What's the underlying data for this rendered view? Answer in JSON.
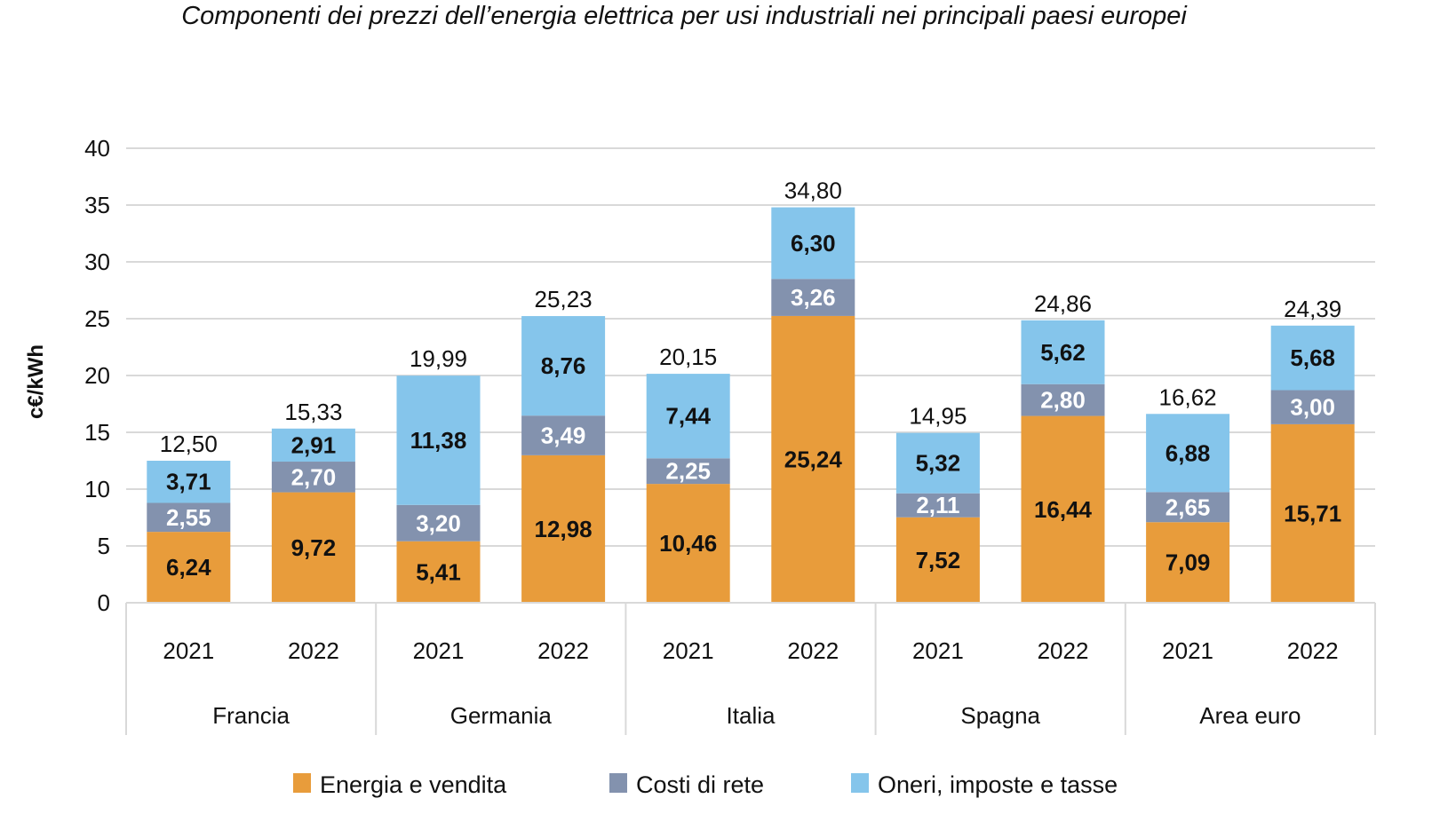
{
  "title": "Componenti dei prezzi dell’energia elettrica per usi industriali nei principali paesi europei",
  "chart_data": {
    "type": "bar",
    "stacked": true,
    "title": "Componenti dei prezzi dell’energia elettrica per usi industriali nei principali paesi europei",
    "xlabel": "",
    "ylabel": "c€/kWh",
    "ylim": [
      0,
      40
    ],
    "yticks": [
      0,
      5,
      10,
      15,
      20,
      25,
      30,
      35,
      40
    ],
    "grid": true,
    "legend_position": "bottom",
    "groups": [
      "Francia",
      "Germania",
      "Italia",
      "Spagna",
      "Area euro"
    ],
    "categories": [
      "2021",
      "2022",
      "2021",
      "2022",
      "2021",
      "2022",
      "2021",
      "2022",
      "2021",
      "2022"
    ],
    "series": [
      {
        "name": "Energia e vendita",
        "color": "#E89C3B",
        "label_color": "#111111",
        "values": [
          6.24,
          9.72,
          5.41,
          12.98,
          10.46,
          25.24,
          7.52,
          16.44,
          7.09,
          15.71
        ],
        "labels": [
          "6,24",
          "9,72",
          "5,41",
          "12,98",
          "10,46",
          "25,24",
          "7,52",
          "16,44",
          "7,09",
          "15,71"
        ]
      },
      {
        "name": "Costi di rete",
        "color": "#8392AE",
        "label_color": "#ffffff",
        "values": [
          2.55,
          2.7,
          3.2,
          3.49,
          2.25,
          3.26,
          2.11,
          2.8,
          2.65,
          3.0
        ],
        "labels": [
          "2,55",
          "2,70",
          "3,20",
          "3,49",
          "2,25",
          "3,26",
          "2,11",
          "2,80",
          "2,65",
          "3,00"
        ]
      },
      {
        "name": "Oneri, imposte e tasse",
        "color": "#85C5EB",
        "label_color": "#111111",
        "values": [
          3.71,
          2.91,
          11.38,
          8.76,
          7.44,
          6.3,
          5.32,
          5.62,
          6.88,
          5.68
        ],
        "labels": [
          "3,71",
          "2,91",
          "11,38",
          "8,76",
          "7,44",
          "6,30",
          "5,32",
          "5,62",
          "6,88",
          "5,68"
        ]
      }
    ],
    "totals": [
      12.5,
      15.33,
      19.99,
      25.23,
      20.15,
      34.8,
      14.95,
      24.86,
      16.62,
      24.39
    ],
    "total_labels": [
      "12,50",
      "15,33",
      "19,99",
      "25,23",
      "20,15",
      "34,80",
      "14,95",
      "24,86",
      "16,62",
      "24,39"
    ],
    "ytick_labels": [
      "0",
      "5",
      "10",
      "15",
      "20",
      "25",
      "30",
      "35",
      "40"
    ]
  }
}
